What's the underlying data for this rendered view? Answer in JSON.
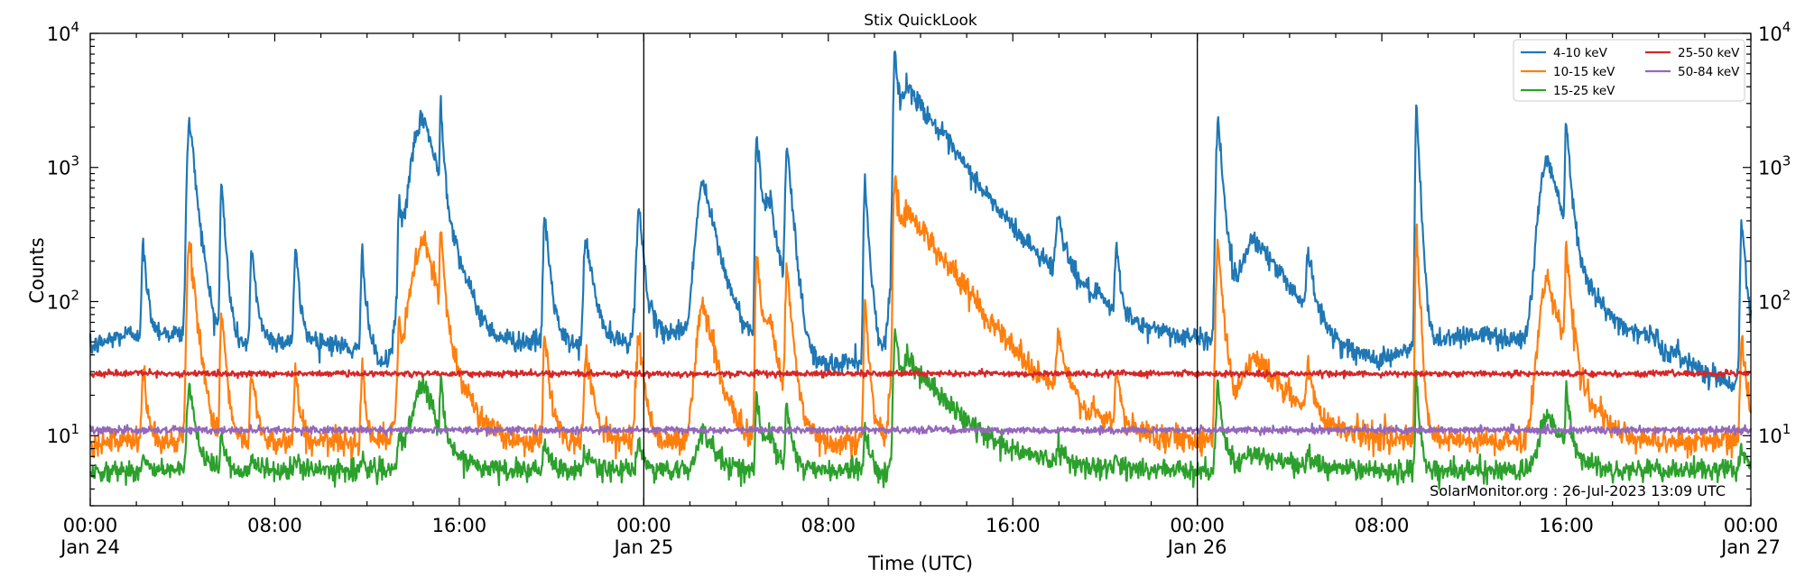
{
  "chart_data": {
    "type": "line",
    "title": "Stix QuickLook",
    "xlabel": "Time (UTC)",
    "ylabel": "Counts",
    "yscale": "log",
    "ylim": [
      3,
      10000
    ],
    "xlim_hours": [
      0,
      72
    ],
    "y_ticks": [
      {
        "value": 10,
        "base": "10",
        "exp": "1"
      },
      {
        "value": 100,
        "base": "10",
        "exp": "2"
      },
      {
        "value": 1000,
        "base": "10",
        "exp": "3"
      },
      {
        "value": 10000,
        "base": "10",
        "exp": "4"
      }
    ],
    "x_ticks": [
      {
        "hour": 0,
        "time": "00:00",
        "date": "Jan 24"
      },
      {
        "hour": 8,
        "time": "08:00",
        "date": ""
      },
      {
        "hour": 16,
        "time": "16:00",
        "date": ""
      },
      {
        "hour": 24,
        "time": "00:00",
        "date": "Jan 25"
      },
      {
        "hour": 32,
        "time": "08:00",
        "date": ""
      },
      {
        "hour": 40,
        "time": "16:00",
        "date": ""
      },
      {
        "hour": 48,
        "time": "00:00",
        "date": "Jan 26"
      },
      {
        "hour": 56,
        "time": "08:00",
        "date": ""
      },
      {
        "hour": 64,
        "time": "16:00",
        "date": ""
      },
      {
        "hour": 72,
        "time": "00:00",
        "date": "Jan 27"
      }
    ],
    "day_boundaries_hours": [
      24,
      48
    ],
    "annotation": "SolarMonitor.org : 26-Jul-2023 13:09 UTC",
    "legend_position": "top-right",
    "series": [
      {
        "name": "4-10 keV",
        "color": "#1f77b4",
        "baseline": 45,
        "noise": 0.09
      },
      {
        "name": "10-15 keV",
        "color": "#ff7f0e",
        "baseline": 9,
        "noise": 0.11
      },
      {
        "name": "15-25 keV",
        "color": "#2ca02c",
        "baseline": 5.5,
        "noise": 0.09
      },
      {
        "name": "25-50 keV",
        "color": "#d62728",
        "baseline": 29,
        "noise": 0.025
      },
      {
        "name": "50-84 keV",
        "color": "#9467bd",
        "baseline": 11,
        "noise": 0.03
      }
    ],
    "flares": [
      {
        "t": 4.3,
        "peak": 2200,
        "rise": 0.08,
        "decay": 0.25
      },
      {
        "t": 5.7,
        "peak": 700,
        "rise": 0.05,
        "decay": 0.15
      },
      {
        "t": 2.3,
        "peak": 200,
        "rise": 0.05,
        "decay": 0.15
      },
      {
        "t": 7.0,
        "peak": 180,
        "rise": 0.05,
        "decay": 0.2
      },
      {
        "t": 8.9,
        "peak": 200,
        "rise": 0.05,
        "decay": 0.15
      },
      {
        "t": 11.8,
        "peak": 200,
        "rise": 0.05,
        "decay": 0.15
      },
      {
        "t": 14.5,
        "peak": 2300,
        "rise": 0.45,
        "decay": 0.6
      },
      {
        "t": 15.2,
        "peak": 2600,
        "rise": 0.03,
        "decay": 0.1
      },
      {
        "t": 13.4,
        "peak": 400,
        "rise": 0.05,
        "decay": 0.15
      },
      {
        "t": 19.7,
        "peak": 400,
        "rise": 0.05,
        "decay": 0.2
      },
      {
        "t": 21.5,
        "peak": 250,
        "rise": 0.08,
        "decay": 0.3
      },
      {
        "t": 23.8,
        "peak": 420,
        "rise": 0.1,
        "decay": 0.2
      },
      {
        "t": 26.6,
        "peak": 700,
        "rise": 0.25,
        "decay": 0.5
      },
      {
        "t": 28.9,
        "peak": 1700,
        "rise": 0.05,
        "decay": 0.2
      },
      {
        "t": 30.2,
        "peak": 1400,
        "rise": 0.05,
        "decay": 0.2
      },
      {
        "t": 29.5,
        "peak": 450,
        "rise": 0.2,
        "decay": 0.4
      },
      {
        "t": 33.6,
        "peak": 750,
        "rise": 0.05,
        "decay": 0.15
      },
      {
        "t": 34.9,
        "peak": 7000,
        "rise": 0.06,
        "decay": 0.15
      },
      {
        "t": 35.5,
        "peak": 3800,
        "rise": 0.3,
        "decay": 1.8
      },
      {
        "t": 42.0,
        "peak": 270,
        "rise": 0.1,
        "decay": 0.3
      },
      {
        "t": 44.5,
        "peak": 180,
        "rise": 0.05,
        "decay": 0.15
      },
      {
        "t": 48.9,
        "peak": 2200,
        "rise": 0.07,
        "decay": 0.2
      },
      {
        "t": 50.5,
        "peak": 250,
        "rise": 0.5,
        "decay": 1.5
      },
      {
        "t": 52.8,
        "peak": 170,
        "rise": 0.05,
        "decay": 0.2
      },
      {
        "t": 57.5,
        "peak": 2800,
        "rise": 0.04,
        "decay": 0.12
      },
      {
        "t": 63.2,
        "peak": 1100,
        "rise": 0.3,
        "decay": 0.7
      },
      {
        "t": 64.0,
        "peak": 1900,
        "rise": 0.04,
        "decay": 0.15
      },
      {
        "t": 71.6,
        "peak": 380,
        "rise": 0.05,
        "decay": 0.2
      }
    ]
  }
}
